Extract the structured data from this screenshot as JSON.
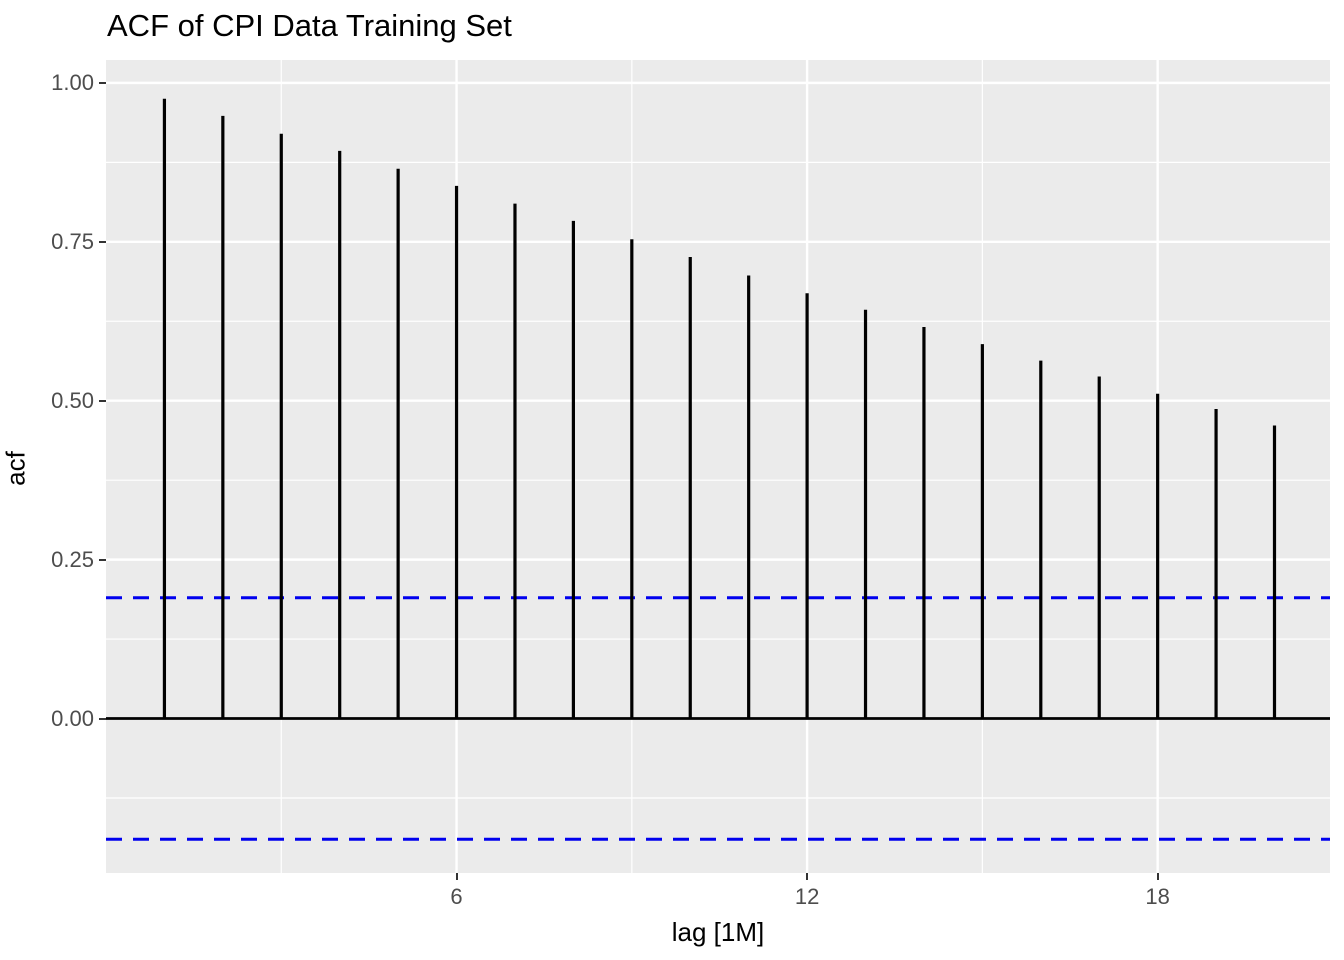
{
  "chart_data": {
    "type": "bar",
    "title": "ACF of CPI Data Training Set",
    "xlabel": "lag [1M]",
    "ylabel": "acf",
    "x": [
      1,
      2,
      3,
      4,
      5,
      6,
      7,
      8,
      9,
      10,
      11,
      12,
      13,
      14,
      15,
      16,
      17,
      18,
      19,
      20
    ],
    "values": [
      0.975,
      0.948,
      0.92,
      0.893,
      0.865,
      0.838,
      0.81,
      0.783,
      0.754,
      0.726,
      0.697,
      0.669,
      0.643,
      0.616,
      0.589,
      0.563,
      0.538,
      0.511,
      0.487,
      0.461
    ],
    "confidence_bounds": [
      0.19,
      -0.19
    ],
    "zero_line": 0,
    "xlim": [
      0,
      20.95
    ],
    "ylim": [
      -0.243,
      1.036
    ],
    "x_ticks": [
      {
        "label": "6",
        "value": 6
      },
      {
        "label": "12",
        "value": 12
      },
      {
        "label": "18",
        "value": 18
      }
    ],
    "x_minor_gridlines": [
      3,
      9,
      15
    ],
    "y_ticks": [
      {
        "label": "1.00",
        "value": 1.0
      },
      {
        "label": "0.75",
        "value": 0.75
      },
      {
        "label": "0.50",
        "value": 0.5
      },
      {
        "label": "0.25",
        "value": 0.25
      },
      {
        "label": "0.00",
        "value": 0.0
      }
    ],
    "y_minor_gridlines": [
      0.875,
      0.625,
      0.375,
      0.125,
      -0.125
    ],
    "grid": true,
    "legend_position": "none",
    "colors": {
      "bar": "#000000",
      "confidence_line": "#0000EE",
      "zero_line": "#000000",
      "panel_background": "#EBEBEB",
      "gridline": "#FFFFFF",
      "tick_label": "#4D4D4D",
      "tick_mark": "#333333",
      "axis_title": "#000000",
      "title": "#000000"
    }
  }
}
